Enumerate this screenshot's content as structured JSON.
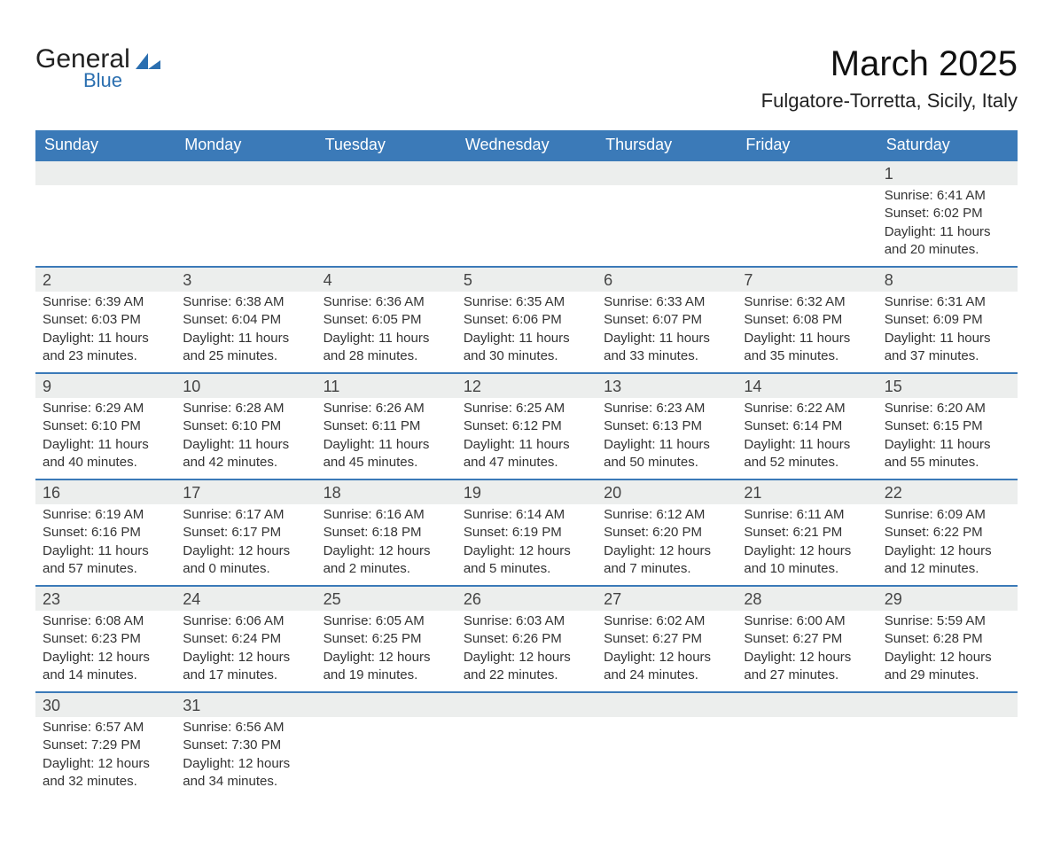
{
  "brand": {
    "line1": "General",
    "line2": "Blue",
    "accent": "#2b6fb0"
  },
  "title": "March 2025",
  "location": "Fulgatore-Torretta, Sicily, Italy",
  "colors": {
    "header_bg": "#3b7ab8",
    "header_text": "#ffffff",
    "daynum_bg": "#eceeed",
    "row_border": "#3b7ab8",
    "text": "#333333",
    "bg": "#ffffff"
  },
  "weekdays": [
    "Sunday",
    "Monday",
    "Tuesday",
    "Wednesday",
    "Thursday",
    "Friday",
    "Saturday"
  ],
  "weeks": [
    {
      "nums": [
        "",
        "",
        "",
        "",
        "",
        "",
        "1"
      ],
      "cells": [
        "",
        "",
        "",
        "",
        "",
        "",
        "Sunrise: 6:41 AM\nSunset: 6:02 PM\nDaylight: 11 hours and 20 minutes."
      ]
    },
    {
      "nums": [
        "2",
        "3",
        "4",
        "5",
        "6",
        "7",
        "8"
      ],
      "cells": [
        "Sunrise: 6:39 AM\nSunset: 6:03 PM\nDaylight: 11 hours and 23 minutes.",
        "Sunrise: 6:38 AM\nSunset: 6:04 PM\nDaylight: 11 hours and 25 minutes.",
        "Sunrise: 6:36 AM\nSunset: 6:05 PM\nDaylight: 11 hours and 28 minutes.",
        "Sunrise: 6:35 AM\nSunset: 6:06 PM\nDaylight: 11 hours and 30 minutes.",
        "Sunrise: 6:33 AM\nSunset: 6:07 PM\nDaylight: 11 hours and 33 minutes.",
        "Sunrise: 6:32 AM\nSunset: 6:08 PM\nDaylight: 11 hours and 35 minutes.",
        "Sunrise: 6:31 AM\nSunset: 6:09 PM\nDaylight: 11 hours and 37 minutes."
      ]
    },
    {
      "nums": [
        "9",
        "10",
        "11",
        "12",
        "13",
        "14",
        "15"
      ],
      "cells": [
        "Sunrise: 6:29 AM\nSunset: 6:10 PM\nDaylight: 11 hours and 40 minutes.",
        "Sunrise: 6:28 AM\nSunset: 6:10 PM\nDaylight: 11 hours and 42 minutes.",
        "Sunrise: 6:26 AM\nSunset: 6:11 PM\nDaylight: 11 hours and 45 minutes.",
        "Sunrise: 6:25 AM\nSunset: 6:12 PM\nDaylight: 11 hours and 47 minutes.",
        "Sunrise: 6:23 AM\nSunset: 6:13 PM\nDaylight: 11 hours and 50 minutes.",
        "Sunrise: 6:22 AM\nSunset: 6:14 PM\nDaylight: 11 hours and 52 minutes.",
        "Sunrise: 6:20 AM\nSunset: 6:15 PM\nDaylight: 11 hours and 55 minutes."
      ]
    },
    {
      "nums": [
        "16",
        "17",
        "18",
        "19",
        "20",
        "21",
        "22"
      ],
      "cells": [
        "Sunrise: 6:19 AM\nSunset: 6:16 PM\nDaylight: 11 hours and 57 minutes.",
        "Sunrise: 6:17 AM\nSunset: 6:17 PM\nDaylight: 12 hours and 0 minutes.",
        "Sunrise: 6:16 AM\nSunset: 6:18 PM\nDaylight: 12 hours and 2 minutes.",
        "Sunrise: 6:14 AM\nSunset: 6:19 PM\nDaylight: 12 hours and 5 minutes.",
        "Sunrise: 6:12 AM\nSunset: 6:20 PM\nDaylight: 12 hours and 7 minutes.",
        "Sunrise: 6:11 AM\nSunset: 6:21 PM\nDaylight: 12 hours and 10 minutes.",
        "Sunrise: 6:09 AM\nSunset: 6:22 PM\nDaylight: 12 hours and 12 minutes."
      ]
    },
    {
      "nums": [
        "23",
        "24",
        "25",
        "26",
        "27",
        "28",
        "29"
      ],
      "cells": [
        "Sunrise: 6:08 AM\nSunset: 6:23 PM\nDaylight: 12 hours and 14 minutes.",
        "Sunrise: 6:06 AM\nSunset: 6:24 PM\nDaylight: 12 hours and 17 minutes.",
        "Sunrise: 6:05 AM\nSunset: 6:25 PM\nDaylight: 12 hours and 19 minutes.",
        "Sunrise: 6:03 AM\nSunset: 6:26 PM\nDaylight: 12 hours and 22 minutes.",
        "Sunrise: 6:02 AM\nSunset: 6:27 PM\nDaylight: 12 hours and 24 minutes.",
        "Sunrise: 6:00 AM\nSunset: 6:27 PM\nDaylight: 12 hours and 27 minutes.",
        "Sunrise: 5:59 AM\nSunset: 6:28 PM\nDaylight: 12 hours and 29 minutes."
      ]
    },
    {
      "nums": [
        "30",
        "31",
        "",
        "",
        "",
        "",
        ""
      ],
      "cells": [
        "Sunrise: 6:57 AM\nSunset: 7:29 PM\nDaylight: 12 hours and 32 minutes.",
        "Sunrise: 6:56 AM\nSunset: 7:30 PM\nDaylight: 12 hours and 34 minutes.",
        "",
        "",
        "",
        "",
        ""
      ]
    }
  ]
}
